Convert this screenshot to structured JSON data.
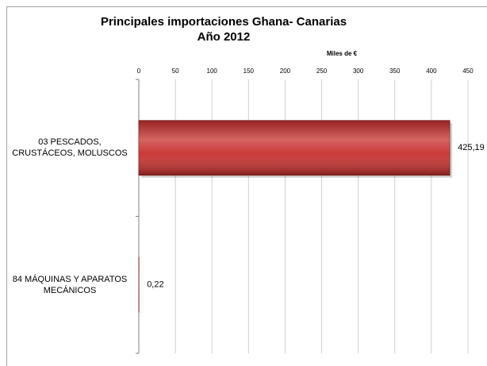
{
  "chart_data": {
    "type": "bar",
    "orientation": "horizontal",
    "title": "Principales importaciones  Ghana- Canarias",
    "subtitle": "Año 2012",
    "x_label": "Miles de €",
    "categories": [
      "03 PESCADOS, CRUSTÁCEOS, MOLUSCOS",
      "84 MÁQUINAS Y APARATOS MECÁNICOS"
    ],
    "values": [
      425.19,
      0.22
    ],
    "value_labels": [
      "425,19",
      "0,22"
    ],
    "color": "#c8302e",
    "xlim": [
      0,
      450
    ],
    "xticks": [
      0,
      50,
      100,
      150,
      200,
      250,
      300,
      350,
      400,
      450
    ],
    "grid": true
  }
}
